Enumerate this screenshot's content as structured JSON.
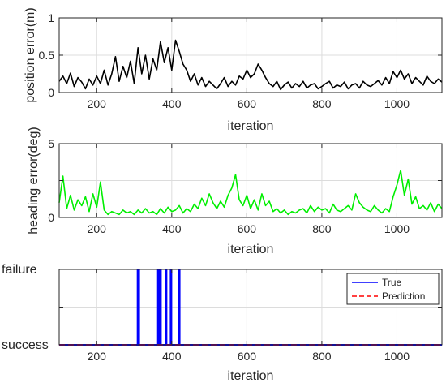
{
  "chart_data": [
    {
      "type": "line",
      "xlabel": "iteration",
      "ylabel": "position error(m)",
      "xlim": [
        100,
        1120
      ],
      "ylim": [
        0,
        1
      ],
      "xticks": [
        200,
        400,
        600,
        800,
        1000
      ],
      "yticks": [
        0,
        0.5,
        1
      ],
      "ytick_labels": [
        "0",
        "0.5",
        "1"
      ],
      "grid": true,
      "color": "#000000",
      "x": [
        100,
        110,
        120,
        130,
        140,
        150,
        160,
        170,
        180,
        190,
        200,
        210,
        220,
        230,
        240,
        250,
        260,
        270,
        280,
        290,
        300,
        310,
        320,
        330,
        340,
        350,
        360,
        370,
        380,
        390,
        400,
        410,
        420,
        430,
        440,
        450,
        460,
        470,
        480,
        490,
        500,
        510,
        520,
        530,
        540,
        550,
        560,
        570,
        580,
        590,
        600,
        610,
        620,
        630,
        640,
        650,
        660,
        670,
        680,
        690,
        700,
        710,
        720,
        730,
        740,
        750,
        760,
        770,
        780,
        790,
        800,
        810,
        820,
        830,
        840,
        850,
        860,
        870,
        880,
        890,
        900,
        910,
        920,
        930,
        940,
        950,
        960,
        970,
        980,
        990,
        1000,
        1010,
        1020,
        1030,
        1040,
        1050,
        1060,
        1070,
        1080,
        1090,
        1100,
        1110,
        1120
      ],
      "y": [
        0.15,
        0.22,
        0.12,
        0.26,
        0.08,
        0.2,
        0.14,
        0.05,
        0.18,
        0.1,
        0.22,
        0.12,
        0.3,
        0.1,
        0.25,
        0.48,
        0.15,
        0.35,
        0.2,
        0.42,
        0.12,
        0.6,
        0.25,
        0.5,
        0.18,
        0.45,
        0.3,
        0.68,
        0.4,
        0.6,
        0.3,
        0.7,
        0.55,
        0.38,
        0.3,
        0.15,
        0.25,
        0.1,
        0.2,
        0.08,
        0.15,
        0.1,
        0.05,
        0.12,
        0.2,
        0.08,
        0.15,
        0.1,
        0.22,
        0.18,
        0.3,
        0.2,
        0.25,
        0.38,
        0.3,
        0.2,
        0.12,
        0.08,
        0.15,
        0.04,
        0.1,
        0.14,
        0.06,
        0.12,
        0.08,
        0.15,
        0.06,
        0.1,
        0.12,
        0.05,
        0.08,
        0.12,
        0.15,
        0.06,
        0.1,
        0.08,
        0.14,
        0.05,
        0.1,
        0.12,
        0.06,
        0.15,
        0.1,
        0.08,
        0.12,
        0.16,
        0.1,
        0.2,
        0.12,
        0.28,
        0.2,
        0.3,
        0.18,
        0.25,
        0.12,
        0.2,
        0.15,
        0.1,
        0.22,
        0.15,
        0.12,
        0.18,
        0.14
      ]
    },
    {
      "type": "line",
      "xlabel": "iteration",
      "ylabel": "heading error(deg)",
      "xlim": [
        100,
        1120
      ],
      "ylim": [
        0,
        5
      ],
      "xticks": [
        200,
        400,
        600,
        800,
        1000
      ],
      "yticks": [
        0,
        5
      ],
      "ytick_labels": [
        "0",
        "5"
      ],
      "grid": true,
      "color": "#00ee00",
      "x": [
        100,
        110,
        120,
        130,
        140,
        150,
        160,
        170,
        180,
        190,
        200,
        210,
        220,
        230,
        240,
        250,
        260,
        270,
        280,
        290,
        300,
        310,
        320,
        330,
        340,
        350,
        360,
        370,
        380,
        390,
        400,
        410,
        420,
        430,
        440,
        450,
        460,
        470,
        480,
        490,
        500,
        510,
        520,
        530,
        540,
        550,
        560,
        570,
        580,
        590,
        600,
        610,
        620,
        630,
        640,
        650,
        660,
        670,
        680,
        690,
        700,
        710,
        720,
        730,
        740,
        750,
        760,
        770,
        780,
        790,
        800,
        810,
        820,
        830,
        840,
        850,
        860,
        870,
        880,
        890,
        900,
        910,
        920,
        930,
        940,
        950,
        960,
        970,
        980,
        990,
        1000,
        1010,
        1020,
        1030,
        1040,
        1050,
        1060,
        1070,
        1080,
        1090,
        1100,
        1110,
        1120
      ],
      "y": [
        1.0,
        2.8,
        0.6,
        1.5,
        0.5,
        1.2,
        0.8,
        1.4,
        0.4,
        1.6,
        0.7,
        2.4,
        0.5,
        0.2,
        0.4,
        0.3,
        0.2,
        0.5,
        0.3,
        0.4,
        0.2,
        0.5,
        0.3,
        0.6,
        0.3,
        0.4,
        0.2,
        0.6,
        0.3,
        0.7,
        0.4,
        0.5,
        0.8,
        0.3,
        0.6,
        0.4,
        0.9,
        0.6,
        1.3,
        0.8,
        1.6,
        1.0,
        0.6,
        1.1,
        0.7,
        1.5,
        2.0,
        2.9,
        1.2,
        0.8,
        1.5,
        0.6,
        1.2,
        0.5,
        1.6,
        0.8,
        1.1,
        0.4,
        0.6,
        0.3,
        0.5,
        0.2,
        0.4,
        0.3,
        0.5,
        0.6,
        0.3,
        0.8,
        0.4,
        0.7,
        0.5,
        0.6,
        0.3,
        0.9,
        0.5,
        0.4,
        0.6,
        0.8,
        0.5,
        1.6,
        1.0,
        0.7,
        0.5,
        0.4,
        0.8,
        0.5,
        0.3,
        0.6,
        0.4,
        1.4,
        2.2,
        3.2,
        1.5,
        2.6,
        0.9,
        1.4,
        0.6,
        0.8,
        0.5,
        1.0,
        0.4,
        0.9,
        0.6
      ]
    },
    {
      "type": "line",
      "xlabel": "iteration",
      "ylabel": "",
      "xlim": [
        100,
        1120
      ],
      "ylim": [
        0,
        1
      ],
      "xticks": [
        200,
        400,
        600,
        800,
        1000
      ],
      "ytick_labels": [
        "success",
        "failure"
      ],
      "grid": true,
      "legend": {
        "position": "top-right",
        "entries": [
          {
            "label": "True",
            "color": "#0000ff",
            "style": "solid"
          },
          {
            "label": "Prediction",
            "color": "#ff0000",
            "style": "dashed"
          }
        ]
      },
      "series": [
        {
          "name": "True",
          "color": "#0000ff",
          "failure_iterations": [
            310,
            312,
            362,
            366,
            370,
            385,
            398,
            420
          ]
        },
        {
          "name": "Prediction",
          "color": "#ff0000",
          "failure_iterations": []
        }
      ]
    }
  ]
}
